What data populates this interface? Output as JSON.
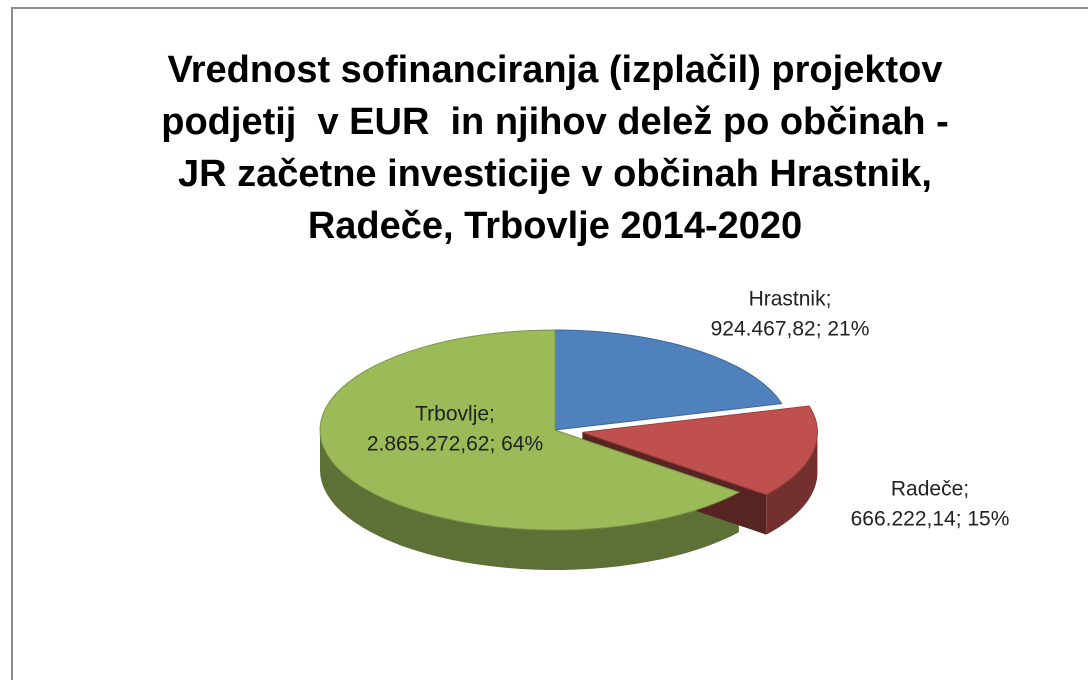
{
  "chart_data": {
    "type": "pie3d",
    "title": [
      "Vrednost sofinanciranja (izplačil) projektov",
      "podjetij  v EUR  in njihov delež po občinah -",
      "JR začetne investicije v občinah Hrastnik,",
      "Radeče, Trbovlje 2014-2020"
    ],
    "values": [
      924467.82,
      666222.14,
      2865272.62
    ],
    "value_labels": [
      [
        "Hrastnik;",
        "924.467,82; 21%"
      ],
      [
        "Radeče;",
        "666.222,14; 15%"
      ],
      [
        "Trbovlje;",
        "2.865.272,62; 64%"
      ]
    ],
    "colors": [
      "#4f81bd",
      "#c0504d",
      "#9bbb59"
    ],
    "exploded": [
      false,
      true,
      false
    ]
  }
}
